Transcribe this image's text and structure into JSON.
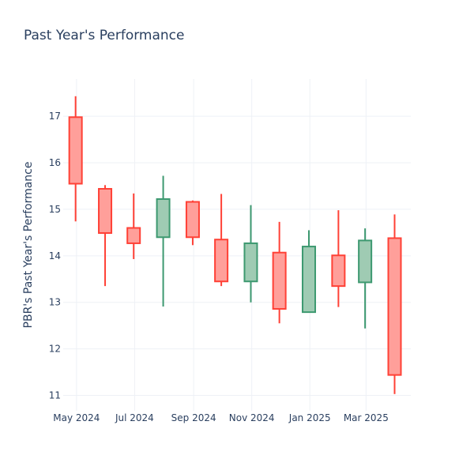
{
  "chart_data": {
    "type": "candlestick",
    "title": "Past Year's Performance",
    "xlabel": "",
    "ylabel": "PBR's Past Year's Performance",
    "ylim": [
      10.67,
      17.8
    ],
    "y_ticks": [
      11,
      12,
      13,
      14,
      15,
      16,
      17
    ],
    "x_ticks": [
      "May 2024",
      "Jul 2024",
      "Sep 2024",
      "Nov 2024",
      "Jan 2025",
      "Mar 2025"
    ],
    "grid": true,
    "colors": {
      "increasing": "#3D9970",
      "decreasing": "#FF4136",
      "increasing_fill": "#9fcbb3",
      "decreasing_fill": "#ff9f9a"
    },
    "series": [
      {
        "x": [
          "2024-04-30",
          "2024-05-31",
          "2024-06-30",
          "2024-07-31",
          "2024-08-31",
          "2024-09-30",
          "2024-10-31",
          "2024-11-30",
          "2024-12-31",
          "2025-01-31",
          "2025-02-28",
          "2025-03-31"
        ],
        "open": [
          16.98,
          15.44,
          14.6,
          14.4,
          15.16,
          14.35,
          13.45,
          14.07,
          12.79,
          14.01,
          13.43,
          14.38
        ],
        "high": [
          17.43,
          15.52,
          15.34,
          15.72,
          15.19,
          15.33,
          15.09,
          14.73,
          14.55,
          14.98,
          14.59,
          14.89
        ],
        "low": [
          14.74,
          13.35,
          13.93,
          12.91,
          14.23,
          13.35,
          13.0,
          12.55,
          12.79,
          12.9,
          12.44,
          11.03
        ],
        "close": [
          15.55,
          14.49,
          14.27,
          15.22,
          14.4,
          13.45,
          14.27,
          12.86,
          14.2,
          13.35,
          14.33,
          11.44
        ]
      }
    ]
  }
}
